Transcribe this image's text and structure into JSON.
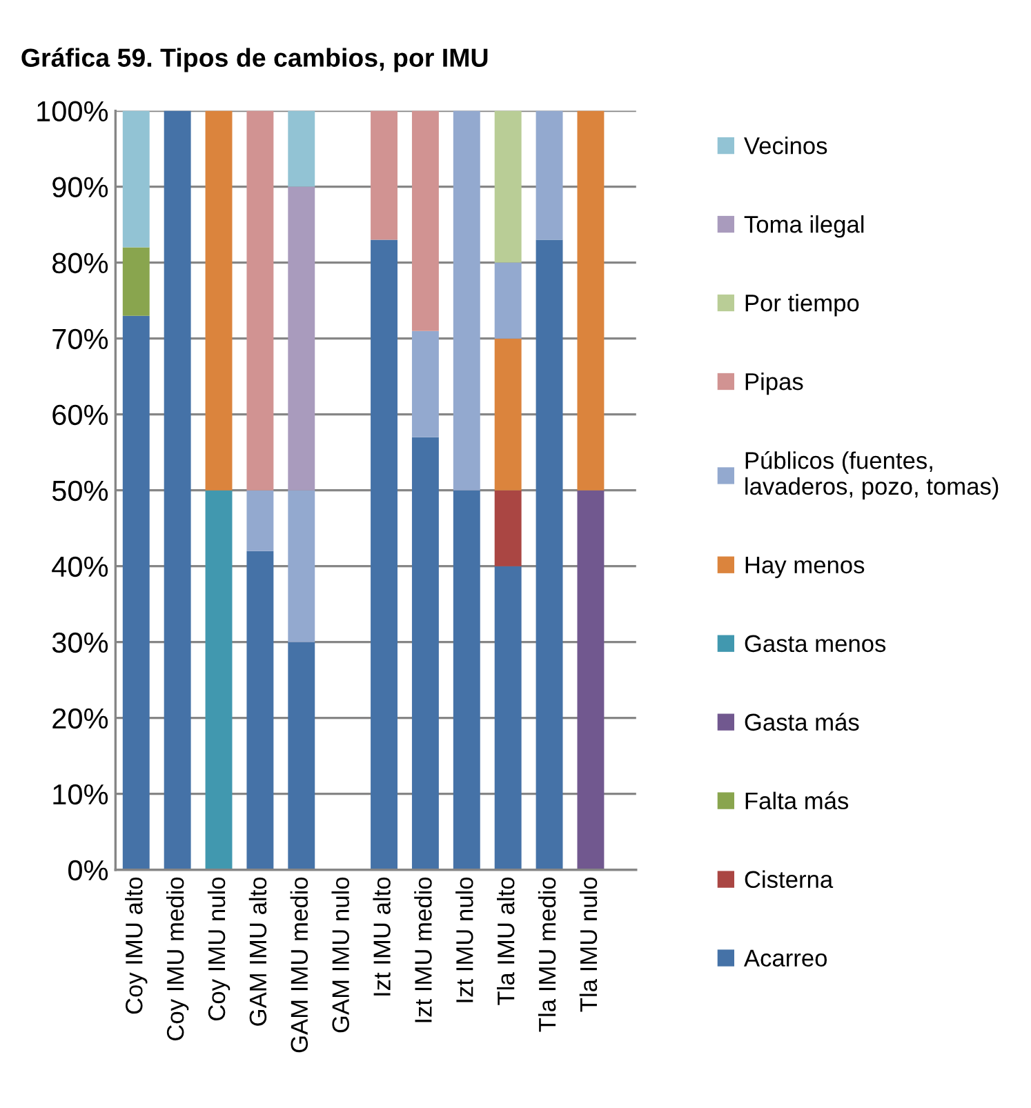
{
  "chart_data": {
    "type": "bar",
    "stacked": true,
    "title": "Gráfica 59. Tipos de cambios, por IMU",
    "categories": [
      "Coy IMU alto",
      "Coy IMU medio",
      "Coy IMU nulo",
      "GAM IMU alto",
      "GAM IMU medio",
      "GAM IMU nulo",
      "Izt IMU alto",
      "Izt IMU medio",
      "Izt IMU nulo",
      "Tla IMU alto",
      "Tla IMU medio",
      "Tla IMU nulo"
    ],
    "series": [
      {
        "name": "Acarreo",
        "color": "#4572a7",
        "values": [
          73,
          100,
          null,
          42,
          30,
          null,
          83,
          57,
          50,
          40,
          83,
          null
        ]
      },
      {
        "name": "Cisterna",
        "color": "#aa4643",
        "values": [
          null,
          null,
          null,
          null,
          null,
          null,
          null,
          null,
          null,
          10,
          null,
          null
        ]
      },
      {
        "name": "Falta más",
        "color": "#89a54e",
        "values": [
          9,
          null,
          null,
          null,
          null,
          null,
          null,
          null,
          null,
          null,
          null,
          null
        ]
      },
      {
        "name": "Gasta más",
        "color": "#71588f",
        "values": [
          null,
          null,
          null,
          null,
          null,
          null,
          null,
          null,
          null,
          null,
          null,
          50
        ]
      },
      {
        "name": "Gasta menos",
        "color": "#4198af",
        "values": [
          null,
          null,
          50,
          null,
          null,
          null,
          null,
          null,
          null,
          null,
          null,
          null
        ]
      },
      {
        "name": "Hay menos",
        "color": "#db843d",
        "values": [
          null,
          null,
          50,
          null,
          null,
          null,
          null,
          null,
          null,
          20,
          null,
          50
        ]
      },
      {
        "name": "Públicos (fuentes,\nlavaderos, pozo, tomas)",
        "color": "#93a9cf",
        "values": [
          null,
          null,
          null,
          8,
          20,
          null,
          null,
          14,
          50,
          10,
          17,
          null
        ]
      },
      {
        "name": "Pipas",
        "color": "#d19392",
        "values": [
          null,
          null,
          null,
          50,
          null,
          null,
          17,
          29,
          null,
          null,
          null,
          null
        ]
      },
      {
        "name": "Por tiempo",
        "color": "#b9cd96",
        "values": [
          null,
          null,
          null,
          null,
          null,
          null,
          null,
          null,
          null,
          20,
          null,
          null
        ]
      },
      {
        "name": "Toma ilegal",
        "color": "#a99bbd",
        "values": [
          null,
          null,
          null,
          null,
          40,
          null,
          null,
          null,
          null,
          null,
          null,
          null
        ]
      },
      {
        "name": "Vecinos",
        "color": "#92c3d4",
        "values": [
          18,
          null,
          null,
          null,
          10,
          null,
          null,
          null,
          null,
          null,
          null,
          null
        ]
      }
    ],
    "ylim": [
      0,
      100
    ],
    "yticks": [
      {
        "value": 0,
        "label": "0%"
      },
      {
        "value": 10,
        "label": "10%"
      },
      {
        "value": 20,
        "label": "20%"
      },
      {
        "value": 30,
        "label": "30%"
      },
      {
        "value": 40,
        "label": "40%"
      },
      {
        "value": 50,
        "label": "50%"
      },
      {
        "value": 60,
        "label": "60%"
      },
      {
        "value": 70,
        "label": "70%"
      },
      {
        "value": 80,
        "label": "80%"
      },
      {
        "value": 90,
        "label": "90%"
      },
      {
        "value": 100,
        "label": "100%"
      }
    ],
    "grid": "y",
    "legend": "right"
  }
}
